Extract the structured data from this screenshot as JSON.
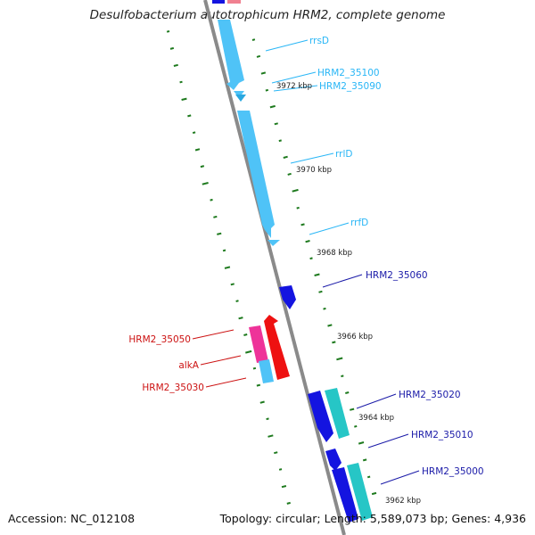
{
  "title": "Desulfobacterium autotrophicum HRM2, complete genome",
  "footer": {
    "accession": "Accession: NC_012108",
    "summary": "Topology: circular; Length: 5,589,073 bp; Genes: 4,936"
  },
  "colors": {
    "rna": "#4fc3f7",
    "rna_label": "#29b6f6",
    "gene_blue": "#1414e0",
    "gene_blue_label": "#1a1aa8",
    "gene_cyan": "#26c6c6",
    "gene_red": "#ee1111",
    "gene_red_label": "#cc1111",
    "gene_pink": "#ee3399",
    "backbone": "#8a8a8a",
    "gc_ticks": "#1e7a1e",
    "kbp_text": "#222222"
  },
  "scale_marks": [
    "3972 kbp",
    "3970 kbp",
    "3968 kbp",
    "3966 kbp",
    "3964 kbp",
    "3962 kbp"
  ],
  "labels": {
    "rrsD": "rrsD",
    "hrm2_35100": "HRM2_35100",
    "hrm2_35090": "HRM2_35090",
    "rrlD": "rrlD",
    "rrfD": "rrfD",
    "hrm2_35060": "HRM2_35060",
    "hrm2_35050": "HRM2_35050",
    "alkA": "alkA",
    "hrm2_35030": "HRM2_35030",
    "hrm2_35020": "HRM2_35020",
    "hrm2_35010": "HRM2_35010",
    "hrm2_35000": "HRM2_35000"
  }
}
